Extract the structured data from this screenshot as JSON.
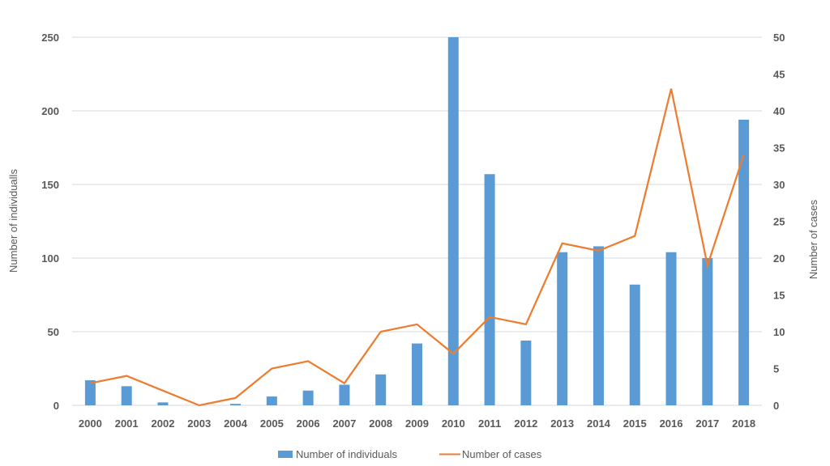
{
  "chart_data": {
    "type": "bar",
    "title": "",
    "xlabel": "",
    "ylabel": "Number of individualls",
    "y2label": "Number of cases",
    "categories": [
      "2000",
      "2001",
      "2002",
      "2003",
      "2004",
      "2005",
      "2006",
      "2007",
      "2008",
      "2009",
      "2010",
      "2011",
      "2012",
      "2013",
      "2014",
      "2015",
      "2016",
      "2017",
      "2018"
    ],
    "ylim": [
      0,
      250
    ],
    "y2lim": [
      0,
      50
    ],
    "yticks": [
      "0",
      "50",
      "100",
      "150",
      "200",
      "250"
    ],
    "y2ticks": [
      "0",
      "5",
      "10",
      "15",
      "20",
      "25",
      "30",
      "35",
      "40",
      "45",
      "50"
    ],
    "grid": true,
    "legend_position": "bottom",
    "series": [
      {
        "name": "Number of individuals",
        "type": "bar",
        "axis": "left",
        "color": "#5b9bd5",
        "values": [
          17,
          13,
          2,
          0,
          1,
          6,
          10,
          14,
          21,
          42,
          250,
          157,
          44,
          104,
          108,
          82,
          104,
          100,
          194
        ]
      },
      {
        "name": "Number of cases",
        "type": "line",
        "axis": "right",
        "color": "#ed7d31",
        "values": [
          3,
          4,
          2,
          0,
          1,
          5,
          6,
          3,
          10,
          11,
          7,
          12,
          11,
          22,
          21,
          23,
          43,
          19,
          34
        ]
      }
    ]
  }
}
